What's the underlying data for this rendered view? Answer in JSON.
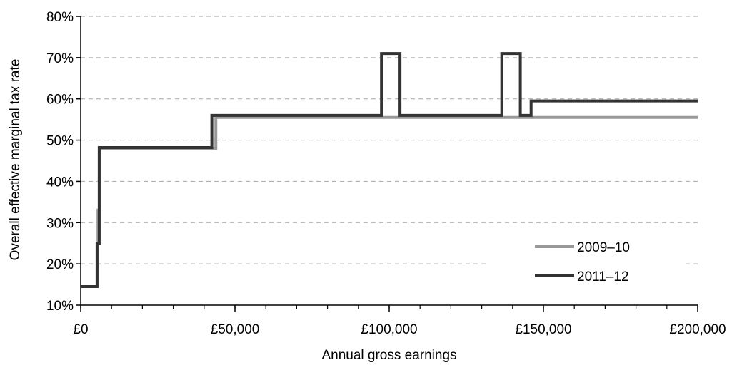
{
  "chart_data": {
    "type": "line",
    "title": "",
    "xlabel": "Annual gross earnings",
    "ylabel": "Overall effective marginal tax rate",
    "xlim": [
      0,
      200000
    ],
    "ylim": [
      10,
      80
    ],
    "x_ticks": [
      0,
      50000,
      100000,
      150000,
      200000
    ],
    "x_tick_labels": [
      "£0",
      "£50,000",
      "£100,000",
      "£150,000",
      "£200,000"
    ],
    "x_minor_tick_step": 10000,
    "y_ticks": [
      10,
      20,
      30,
      40,
      50,
      60,
      70,
      80
    ],
    "y_tick_labels": [
      "10%",
      "20%",
      "30%",
      "40%",
      "50%",
      "60%",
      "70%",
      "80%"
    ],
    "grid": true,
    "legend_position": "bottom-right",
    "series": [
      {
        "name": "2009–10",
        "color": "#999999",
        "points": [
          [
            0,
            14.5
          ],
          [
            5500,
            14.5
          ],
          [
            5500,
            25
          ],
          [
            5600,
            25
          ],
          [
            5600,
            33
          ],
          [
            6000,
            33
          ],
          [
            6000,
            48
          ],
          [
            43800,
            48
          ],
          [
            43800,
            55.5
          ],
          [
            200000,
            55.5
          ]
        ]
      },
      {
        "name": "2011–12",
        "color": "#333333",
        "points": [
          [
            0,
            14.5
          ],
          [
            5300,
            14.5
          ],
          [
            5300,
            25
          ],
          [
            6000,
            25
          ],
          [
            6000,
            48.2
          ],
          [
            42500,
            48.2
          ],
          [
            42500,
            56
          ],
          [
            97500,
            56
          ],
          [
            97500,
            71
          ],
          [
            103500,
            71
          ],
          [
            103500,
            56
          ],
          [
            136500,
            56
          ],
          [
            136500,
            71
          ],
          [
            142500,
            71
          ],
          [
            142500,
            56
          ],
          [
            146000,
            56
          ],
          [
            146000,
            59.5
          ],
          [
            200000,
            59.5
          ]
        ]
      }
    ]
  }
}
